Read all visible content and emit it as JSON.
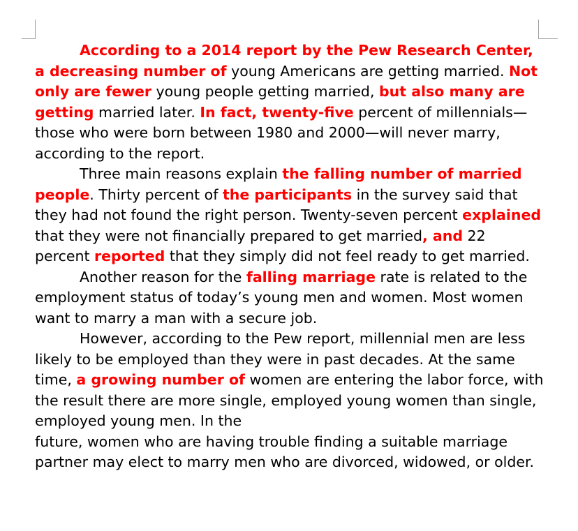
{
  "document": {
    "paragraphs": [
      {
        "indent": true,
        "runs": [
          {
            "text": "According to a 2014 report by the Pew Research Center, a decreasing number of",
            "hl": true
          },
          {
            "text": " young Americans are getting married. ",
            "hl": false
          },
          {
            "text": "Not only are fewer",
            "hl": true
          },
          {
            "text": " young people getting married, ",
            "hl": false
          },
          {
            "text": "but also many are getting",
            "hl": true
          },
          {
            "text": " married later. ",
            "hl": false
          },
          {
            "text": "In fact, twenty-five",
            "hl": true
          },
          {
            "text": " percent of millennials—those who were born between 1980 and 2000—will never marry, according to the report.",
            "hl": false
          }
        ]
      },
      {
        "indent": true,
        "runs": [
          {
            "text": "Three main reasons explain ",
            "hl": false
          },
          {
            "text": "the falling number of married people",
            "hl": true
          },
          {
            "text": ". Thirty percent of ",
            "hl": false
          },
          {
            "text": "the participants",
            "hl": true
          },
          {
            "text": " in the survey said that they had not found the right person. Twenty-seven percent ",
            "hl": false
          },
          {
            "text": "explained",
            "hl": true
          },
          {
            "text": " that they were not financially prepared to get married",
            "hl": false
          },
          {
            "text": ", and",
            "hl": true
          },
          {
            "text": " 22 percent ",
            "hl": false
          },
          {
            "text": "reported",
            "hl": true
          },
          {
            "text": " that they simply did not feel ready to get married.",
            "hl": false
          }
        ]
      },
      {
        "indent": true,
        "runs": [
          {
            "text": "Another reason for the ",
            "hl": false
          },
          {
            "text": "falling marriage",
            "hl": true
          },
          {
            "text": " rate is related to the employment status of today’s young men and women. Most women want to marry a man with a secure job.",
            "hl": false
          }
        ]
      },
      {
        "indent": true,
        "runs": [
          {
            "text": "However, according to the Pew report, millennial men are less likely to be employed than they were in past decades. At the same time, ",
            "hl": false
          },
          {
            "text": "a growing number of",
            "hl": true
          },
          {
            "text": " women are entering the labor force, with the result there are more single, employed young women than single, employed young men. In the",
            "hl": false
          }
        ]
      },
      {
        "indent": false,
        "runs": [
          {
            "text": "future, women who are having trouble finding a suitable marriage partner may elect to marry men who are divorced, widowed, or older.",
            "hl": false
          }
        ]
      }
    ],
    "colors": {
      "highlight": "#ff0000",
      "text": "#000000"
    }
  }
}
